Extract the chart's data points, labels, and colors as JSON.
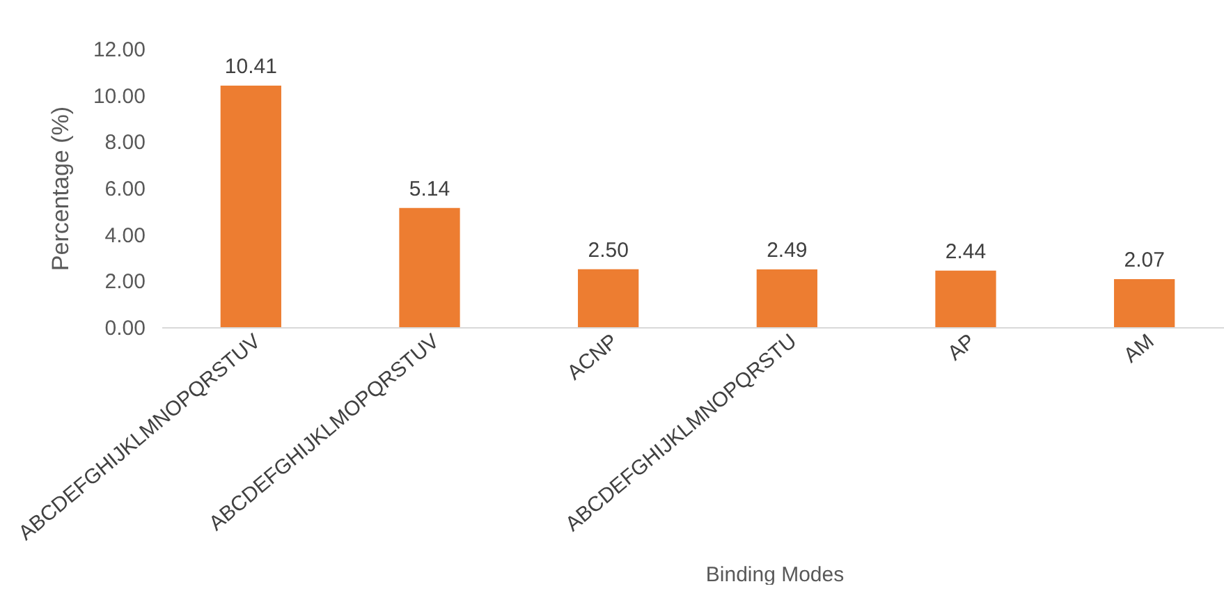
{
  "chart_data": {
    "type": "bar",
    "xlabel": "Binding Modes",
    "ylabel": "Percentage (%)",
    "categories": [
      "ABCDEFGHIJKLMNOPQRSTUV",
      "ABCDEFGHIJKLMOPQRSTUV",
      "ACNP",
      "ABCDEFGHIJKLMNOPQRSTU",
      "AP",
      "AM"
    ],
    "values": [
      10.41,
      5.14,
      2.5,
      2.49,
      2.44,
      2.07
    ],
    "value_labels": [
      "10.41",
      "5.14",
      "2.50",
      "2.49",
      "2.44",
      "2.07"
    ],
    "color": "#ed7d31",
    "ylim": [
      0,
      12
    ],
    "yticks": [
      {
        "value": 0,
        "label": "0.00"
      },
      {
        "value": 2,
        "label": "2.00"
      },
      {
        "value": 4,
        "label": "4.00"
      },
      {
        "value": 6,
        "label": "6.00"
      },
      {
        "value": 8,
        "label": "8.00"
      },
      {
        "value": 10,
        "label": "10.00"
      },
      {
        "value": 12,
        "label": "12.00"
      }
    ],
    "grid": false
  }
}
